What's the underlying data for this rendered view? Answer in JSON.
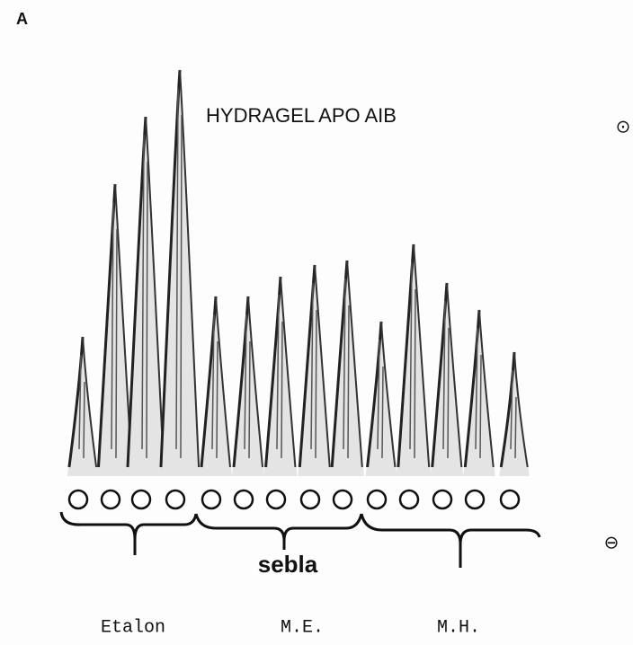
{
  "panel_label": "A",
  "title": "HYDRAGEL APO AIB",
  "anode_symbol": "⊙",
  "cathode_symbol": "⊖",
  "group_label": "sebla",
  "lanes": [
    "Etalon",
    "M.E.",
    "M.H."
  ]
}
